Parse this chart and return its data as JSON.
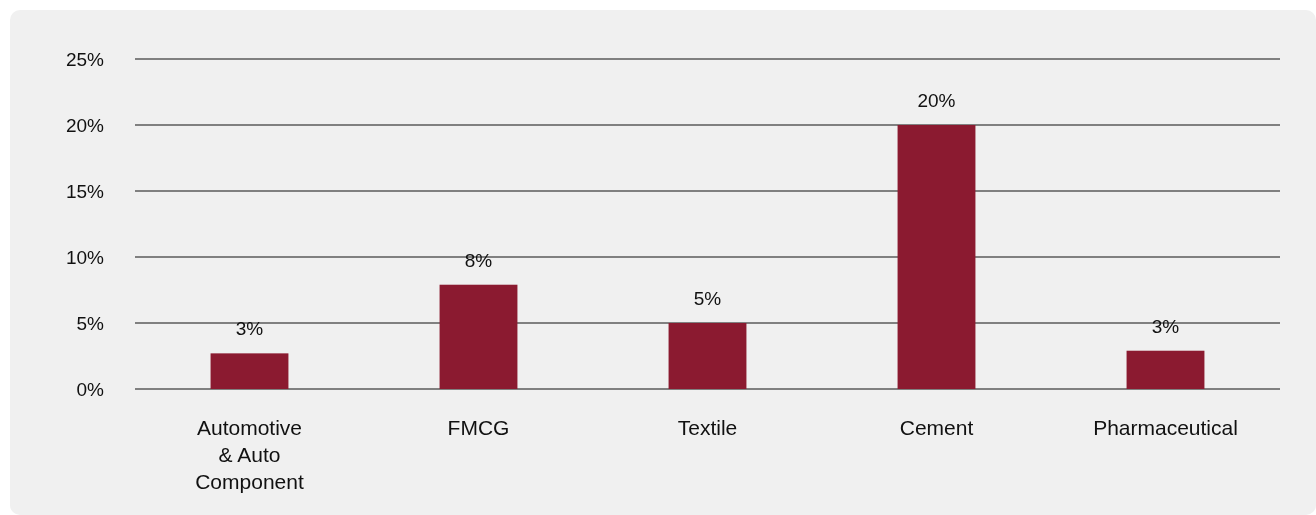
{
  "chart_data": {
    "type": "bar",
    "categories": [
      "Automotive & Auto Component",
      "FMCG",
      "Textile",
      "Cement",
      "Pharmaceutical"
    ],
    "values": [
      2.7,
      7.9,
      5.0,
      20.0,
      2.9
    ],
    "value_labels": [
      "3%",
      "8%",
      "5%",
      "20%",
      "3%"
    ],
    "color": "#8b1a30",
    "ylim": [
      0,
      25
    ],
    "yticks": [
      {
        "value": 0,
        "label": "0%"
      },
      {
        "value": 5,
        "label": "5%"
      },
      {
        "value": 10,
        "label": "10%"
      },
      {
        "value": 15,
        "label": "15%"
      },
      {
        "value": 20,
        "label": "20%"
      },
      {
        "value": 25,
        "label": "25%"
      }
    ],
    "grid": "y"
  }
}
